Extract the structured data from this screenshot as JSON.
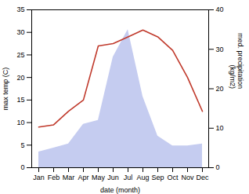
{
  "chart_data": {
    "type": "line",
    "categories": [
      "Jan",
      "Feb",
      "Mar",
      "Apr",
      "May",
      "Jun",
      "Jul",
      "Aug",
      "Sep",
      "Oct",
      "Nov",
      "Dec"
    ],
    "series": [
      {
        "type": "line",
        "color": "#c0392b",
        "values": [
          9.0,
          9.5,
          12.5,
          15.0,
          27.0,
          27.5,
          29.0,
          30.5,
          29.0,
          26.0,
          20.0,
          12.5
        ]
      },
      {
        "type": "area",
        "axis": "y2",
        "color": "#c5ccf0",
        "values": [
          4.0,
          5.0,
          6.0,
          11.0,
          12.0,
          28.0,
          35.0,
          18.0,
          8.0,
          5.5,
          5.5,
          6.0
        ]
      }
    ],
    "xlabel": "date (month)",
    "ylabel": "max temp (C)",
    "y2label": "med. precipitation\n(kg/m2)",
    "ylim": [
      0,
      35
    ],
    "yticks": [
      0,
      5,
      10,
      15,
      20,
      25,
      30,
      35
    ],
    "y2lim": [
      0,
      40
    ],
    "y2ticks": [
      0,
      10,
      20,
      30,
      40
    ],
    "grid": false
  }
}
